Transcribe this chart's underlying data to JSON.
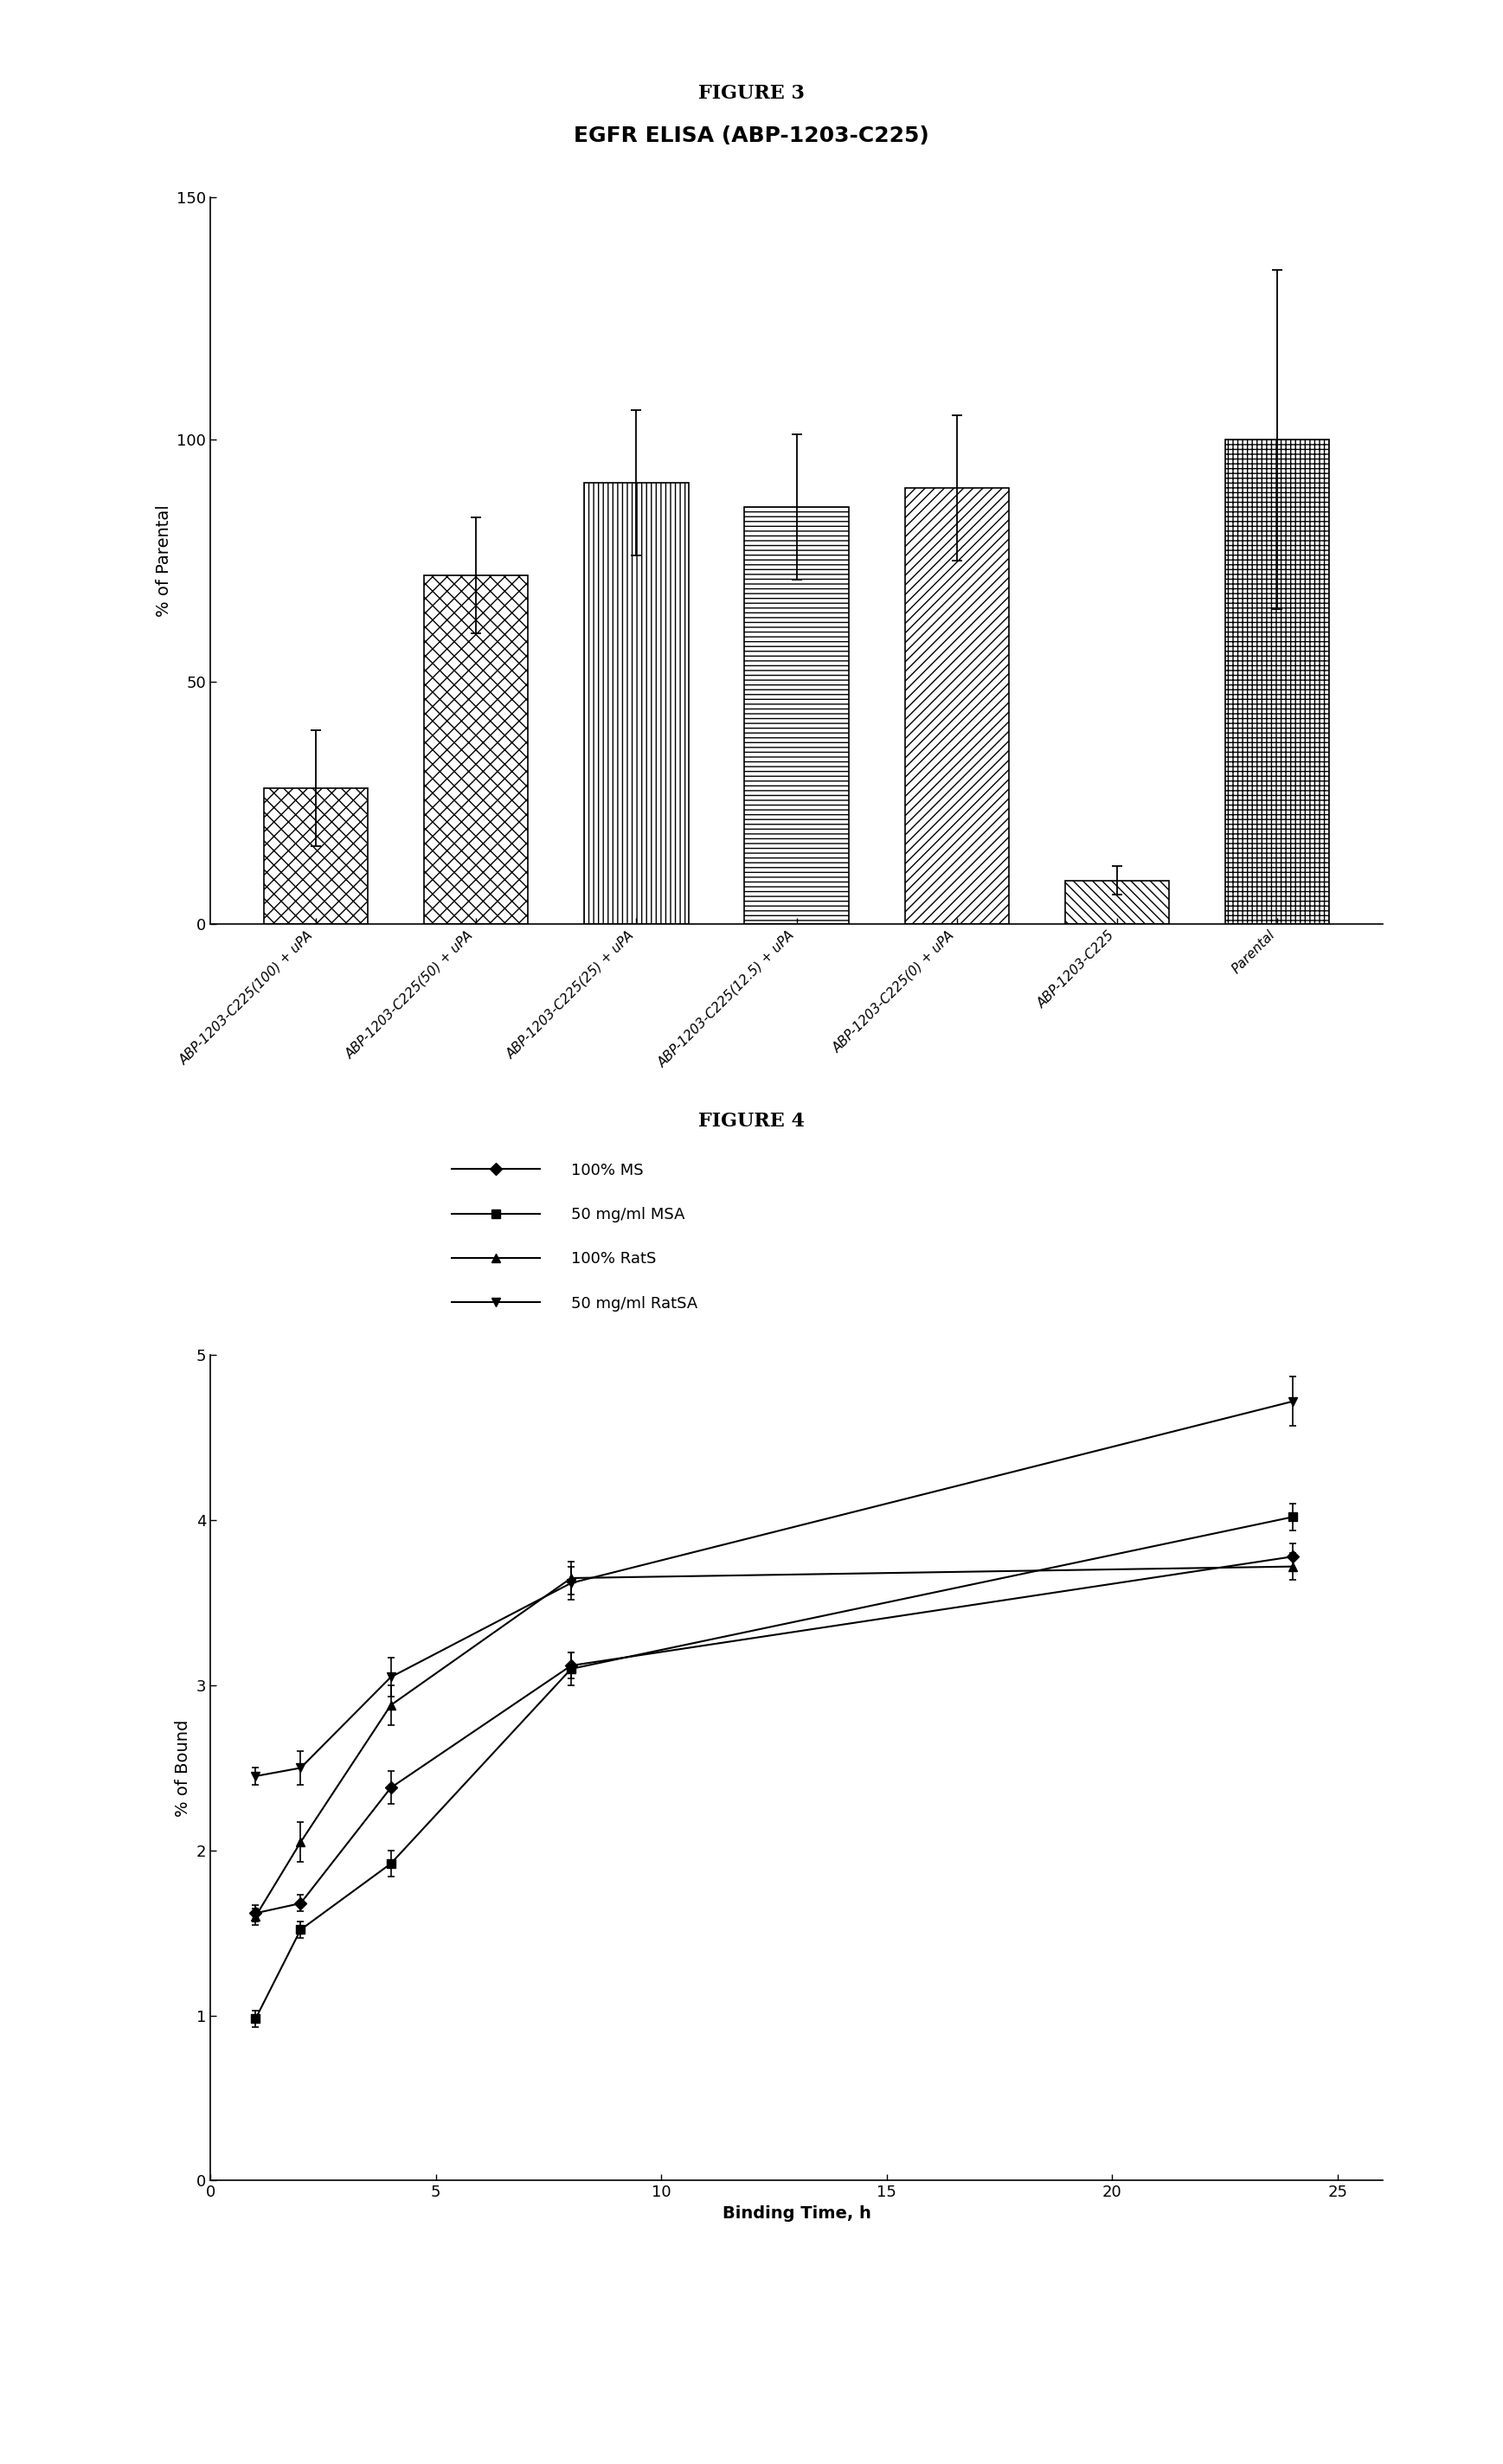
{
  "fig3_title": "FIGURE 3",
  "fig3_subtitle": "EGFR ELISA (ABP-1203-C225)",
  "fig3_ylabel": "% of Parental",
  "fig3_ylim": [
    0,
    150
  ],
  "fig3_yticks": [
    0,
    50,
    100,
    150
  ],
  "fig3_categories": [
    "ABP-1203-C225(100) + uPA",
    "ABP-1203-C225(50) + uPA",
    "ABP-1203-C225(25) + uPA",
    "ABP-1203-C225(12.5) + uPA",
    "ABP-1203-C225(0) + uPA",
    "ABP-1203-C225",
    "Parental"
  ],
  "fig3_values": [
    28,
    72,
    91,
    86,
    90,
    9,
    100
  ],
  "fig3_errors": [
    12,
    12,
    15,
    15,
    15,
    3,
    35
  ],
  "fig4_title": "FIGURE 4",
  "fig4_xlabel": "Binding Time, h",
  "fig4_ylabel": "% of Bound",
  "fig4_ylim": [
    0,
    5
  ],
  "fig4_yticks": [
    0,
    1,
    2,
    3,
    4,
    5
  ],
  "fig4_xlim": [
    0,
    26
  ],
  "fig4_xticks": [
    0,
    5,
    10,
    15,
    20,
    25
  ],
  "fig4_series": [
    {
      "label": "100% MS",
      "x": [
        1,
        2,
        4,
        8,
        24
      ],
      "y": [
        1.62,
        1.68,
        2.38,
        3.12,
        3.78
      ],
      "yerr": [
        0.05,
        0.05,
        0.1,
        0.08,
        0.08
      ],
      "marker": "D"
    },
    {
      "label": "50 mg/ml MSA",
      "x": [
        1,
        2,
        4,
        8,
        24
      ],
      "y": [
        0.98,
        1.52,
        1.92,
        3.1,
        4.02
      ],
      "yerr": [
        0.05,
        0.05,
        0.08,
        0.1,
        0.08
      ],
      "marker": "s"
    },
    {
      "label": "100% RatS",
      "x": [
        1,
        2,
        4,
        8,
        24
      ],
      "y": [
        1.6,
        2.05,
        2.88,
        3.65,
        3.72
      ],
      "yerr": [
        0.05,
        0.12,
        0.12,
        0.1,
        0.08
      ],
      "marker": "^"
    },
    {
      "label": "50 mg/ml RatSA",
      "x": [
        1,
        2,
        4,
        8,
        24
      ],
      "y": [
        2.45,
        2.5,
        3.05,
        3.62,
        4.72
      ],
      "yerr": [
        0.05,
        0.1,
        0.12,
        0.1,
        0.15
      ],
      "marker": "v"
    }
  ],
  "background_color": "#ffffff"
}
